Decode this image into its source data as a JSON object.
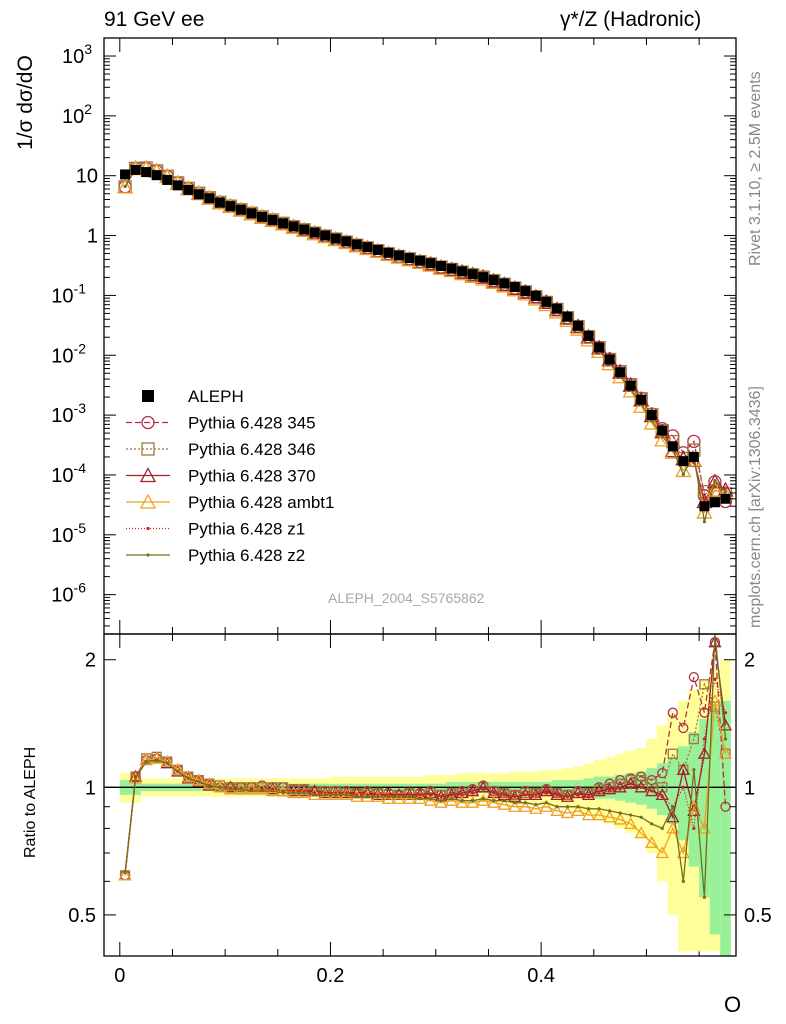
{
  "header": {
    "left_title": "91 GeV ee",
    "right_title": "γ*/Z (Hadronic)"
  },
  "side_notes": {
    "rivet": "Rivet 3.1.10, ≥ 2.5M events",
    "source": "mcplots.cern.ch [arXiv:1306.3436]"
  },
  "watermark": "ALEPH_2004_S5765862",
  "colors": {
    "data": "#000000",
    "p345": "#b03048",
    "p346": "#a07838",
    "p370": "#a0202c",
    "ambt1": "#f0a020",
    "z1": "#d02020",
    "z2": "#707020",
    "band_inner": "#98f098",
    "band_outer": "#ffff99"
  },
  "chart_data": [
    {
      "type": "scatter",
      "name": "main",
      "ylabel": "1/σ  dσ/dO",
      "yscale": "log",
      "xlim": [
        -0.015,
        0.585
      ],
      "ylim": [
        2.2e-07,
        2000
      ],
      "y_tick_labels": [
        "10^-6",
        "10^-5",
        "10^-4",
        "10^-3",
        "10^-2",
        "10^-1",
        "1",
        "10",
        "10^2",
        "10^3"
      ],
      "legend_position": "left",
      "legend": [
        "ALEPH",
        "Pythia 6.428 345",
        "Pythia 6.428 346",
        "Pythia 6.428 370",
        "Pythia 6.428 ambt1",
        "Pythia 6.428 z1",
        "Pythia 6.428 z2"
      ],
      "data_x": [
        0.005,
        0.015,
        0.025,
        0.035,
        0.045,
        0.055,
        0.065,
        0.075,
        0.085,
        0.095,
        0.105,
        0.115,
        0.125,
        0.135,
        0.145,
        0.155,
        0.165,
        0.175,
        0.185,
        0.195,
        0.205,
        0.215,
        0.225,
        0.235,
        0.245,
        0.255,
        0.265,
        0.275,
        0.285,
        0.295,
        0.305,
        0.315,
        0.325,
        0.335,
        0.345,
        0.355,
        0.365,
        0.375,
        0.385,
        0.395,
        0.405,
        0.415,
        0.425,
        0.435,
        0.445,
        0.455,
        0.465,
        0.475,
        0.485,
        0.495,
        0.505,
        0.515,
        0.525,
        0.535,
        0.545,
        0.555,
        0.565,
        0.575
      ],
      "data_y": [
        10.5,
        12.5,
        11.5,
        10.2,
        8.5,
        6.9,
        5.8,
        4.9,
        4.2,
        3.55,
        3.1,
        2.7,
        2.35,
        2.05,
        1.82,
        1.6,
        1.42,
        1.26,
        1.12,
        1.0,
        0.89,
        0.8,
        0.71,
        0.64,
        0.575,
        0.515,
        0.465,
        0.42,
        0.38,
        0.345,
        0.31,
        0.28,
        0.252,
        0.226,
        0.202,
        0.18,
        0.158,
        0.138,
        0.118,
        0.098,
        0.078,
        0.06,
        0.044,
        0.031,
        0.021,
        0.0135,
        0.0085,
        0.0052,
        0.0031,
        0.0018,
        0.001,
        0.00055,
        0.0003,
        0.00017,
        0.0002,
        3e-05,
        3.5e-05,
        4e-05
      ]
    },
    {
      "type": "line",
      "name": "ratio",
      "xlabel": "O",
      "ylabel": "Ratio to ALEPH",
      "xlim": [
        -0.015,
        0.585
      ],
      "ylim": [
        0.4,
        2.3
      ],
      "x_tick_labels": [
        "0",
        "0.2",
        "0.4"
      ],
      "y_tick_labels": [
        "0.5",
        "1",
        "2"
      ],
      "x": [
        0.005,
        0.015,
        0.025,
        0.035,
        0.045,
        0.055,
        0.065,
        0.075,
        0.085,
        0.095,
        0.105,
        0.115,
        0.125,
        0.135,
        0.145,
        0.155,
        0.165,
        0.175,
        0.185,
        0.195,
        0.205,
        0.215,
        0.225,
        0.235,
        0.245,
        0.255,
        0.265,
        0.275,
        0.285,
        0.295,
        0.305,
        0.315,
        0.325,
        0.335,
        0.345,
        0.355,
        0.365,
        0.375,
        0.385,
        0.395,
        0.405,
        0.415,
        0.425,
        0.435,
        0.445,
        0.455,
        0.465,
        0.475,
        0.485,
        0.495,
        0.505,
        0.515,
        0.525,
        0.535,
        0.545,
        0.555,
        0.565,
        0.575
      ],
      "band_inner": [
        0.04,
        0.04,
        0.02,
        0.02,
        0.02,
        0.02,
        0.02,
        0.02,
        0.02,
        0.02,
        0.02,
        0.02,
        0.02,
        0.02,
        0.02,
        0.02,
        0.02,
        0.02,
        0.02,
        0.02,
        0.02,
        0.02,
        0.02,
        0.02,
        0.02,
        0.02,
        0.02,
        0.02,
        0.02,
        0.02,
        0.02,
        0.03,
        0.03,
        0.03,
        0.03,
        0.03,
        0.03,
        0.03,
        0.03,
        0.03,
        0.03,
        0.04,
        0.04,
        0.04,
        0.05,
        0.06,
        0.06,
        0.07,
        0.08,
        0.09,
        0.11,
        0.14,
        0.18,
        0.25,
        0.35,
        0.45,
        0.55,
        0.6
      ],
      "band_outer": [
        0.08,
        0.08,
        0.05,
        0.05,
        0.05,
        0.05,
        0.05,
        0.05,
        0.05,
        0.05,
        0.05,
        0.05,
        0.05,
        0.05,
        0.05,
        0.05,
        0.05,
        0.05,
        0.05,
        0.05,
        0.06,
        0.06,
        0.06,
        0.06,
        0.06,
        0.06,
        0.06,
        0.06,
        0.06,
        0.07,
        0.07,
        0.07,
        0.08,
        0.08,
        0.08,
        0.08,
        0.08,
        0.09,
        0.09,
        0.09,
        0.1,
        0.1,
        0.11,
        0.12,
        0.14,
        0.16,
        0.18,
        0.2,
        0.22,
        0.24,
        0.3,
        0.4,
        0.5,
        0.6,
        0.7,
        0.8,
        0.9,
        1.0
      ],
      "series": [
        {
          "name": "Pythia 6.428 345",
          "color_key": "p345",
          "values": [
            0.62,
            1.06,
            1.16,
            1.17,
            1.15,
            1.1,
            1.06,
            1.04,
            1.02,
            1.0,
            1.0,
            1.0,
            1.0,
            1.01,
            1.0,
            1.0,
            0.99,
            0.99,
            0.98,
            0.98,
            0.98,
            0.98,
            0.97,
            0.98,
            0.97,
            0.97,
            0.96,
            0.97,
            0.97,
            0.98,
            0.96,
            0.97,
            0.98,
            0.99,
            1.01,
            0.98,
            0.97,
            0.96,
            0.98,
            0.97,
            0.99,
            0.97,
            0.96,
            0.98,
            0.97,
            1.0,
            1.02,
            1.04,
            1.05,
            1.06,
            1.04,
            1.08,
            1.5,
            1.38,
            1.82,
            1.5,
            2.2,
            0.9
          ]
        },
        {
          "name": "Pythia 6.428 346",
          "color_key": "p346",
          "values": [
            0.62,
            1.06,
            1.17,
            1.18,
            1.15,
            1.1,
            1.06,
            1.04,
            1.02,
            1.01,
            1.0,
            1.0,
            1.0,
            1.0,
            1.0,
            1.0,
            0.99,
            0.99,
            0.98,
            0.98,
            0.98,
            0.97,
            0.97,
            0.97,
            0.97,
            0.96,
            0.96,
            0.97,
            0.96,
            0.97,
            0.96,
            0.97,
            0.97,
            0.98,
            1.0,
            0.98,
            0.97,
            0.96,
            0.97,
            0.97,
            0.98,
            0.97,
            0.96,
            0.97,
            0.97,
            0.99,
            1.0,
            1.02,
            1.04,
            1.04,
            1.02,
            1.0,
            1.2,
            1.1,
            1.3,
            1.75,
            1.55,
            1.2
          ]
        },
        {
          "name": "Pythia 6.428 370",
          "color_key": "p370",
          "values": [
            0.62,
            1.06,
            1.16,
            1.17,
            1.14,
            1.09,
            1.05,
            1.03,
            1.01,
            1.0,
            1.0,
            0.99,
            0.99,
            0.99,
            0.99,
            0.98,
            0.98,
            0.98,
            0.98,
            0.97,
            0.97,
            0.97,
            0.97,
            0.97,
            0.96,
            0.96,
            0.96,
            0.96,
            0.96,
            0.97,
            0.95,
            0.96,
            0.97,
            0.98,
            1.0,
            0.97,
            0.96,
            0.95,
            0.96,
            0.96,
            0.98,
            0.96,
            0.95,
            0.97,
            0.96,
            0.98,
            0.99,
            1.0,
            1.02,
            1.0,
            0.98,
            0.96,
            0.85,
            1.1,
            0.88,
            1.2,
            2.2,
            1.4
          ]
        },
        {
          "name": "Pythia 6.428 ambt1",
          "color_key": "ambt1",
          "values": [
            0.62,
            1.05,
            1.16,
            1.17,
            1.15,
            1.1,
            1.06,
            1.04,
            1.02,
            1.0,
            0.99,
            0.99,
            0.99,
            0.99,
            0.98,
            0.98,
            0.97,
            0.97,
            0.96,
            0.96,
            0.96,
            0.96,
            0.95,
            0.95,
            0.95,
            0.94,
            0.94,
            0.94,
            0.94,
            0.93,
            0.92,
            0.93,
            0.92,
            0.92,
            0.93,
            0.92,
            0.91,
            0.9,
            0.9,
            0.89,
            0.9,
            0.88,
            0.87,
            0.88,
            0.86,
            0.86,
            0.85,
            0.84,
            0.82,
            0.78,
            0.74,
            0.7,
            0.8,
            0.7,
            0.9,
            0.8,
            1.6,
            1.2
          ]
        },
        {
          "name": "Pythia 6.428 z1",
          "color_key": "z1",
          "values": [
            0.63,
            1.06,
            1.15,
            1.16,
            1.14,
            1.09,
            1.05,
            1.03,
            1.01,
            1.0,
            0.99,
            0.99,
            0.99,
            0.99,
            0.99,
            0.98,
            0.98,
            0.98,
            0.97,
            0.97,
            0.97,
            0.97,
            0.96,
            0.96,
            0.96,
            0.96,
            0.96,
            0.96,
            0.96,
            0.96,
            0.95,
            0.96,
            0.96,
            0.97,
            0.99,
            0.97,
            0.96,
            0.95,
            0.96,
            0.96,
            0.97,
            0.96,
            0.95,
            0.96,
            0.95,
            0.97,
            0.98,
            0.99,
            1.0,
            1.0,
            0.98,
            0.95,
            0.9,
            1.0,
            0.8,
            1.3,
            1.8,
            1.5
          ]
        },
        {
          "name": "Pythia 6.428 z2",
          "color_key": "z2",
          "values": [
            0.63,
            1.05,
            1.15,
            1.16,
            1.14,
            1.09,
            1.05,
            1.03,
            1.01,
            1.0,
            0.99,
            0.99,
            0.98,
            0.98,
            0.98,
            0.97,
            0.97,
            0.97,
            0.96,
            0.96,
            0.96,
            0.96,
            0.95,
            0.95,
            0.95,
            0.95,
            0.95,
            0.95,
            0.94,
            0.94,
            0.93,
            0.94,
            0.93,
            0.93,
            0.94,
            0.93,
            0.93,
            0.92,
            0.92,
            0.91,
            0.92,
            0.9,
            0.9,
            0.9,
            0.89,
            0.89,
            0.88,
            0.87,
            0.86,
            0.85,
            0.82,
            0.8,
            0.9,
            0.6,
            1.1,
            0.55,
            2.3,
            1.3
          ]
        }
      ]
    }
  ]
}
